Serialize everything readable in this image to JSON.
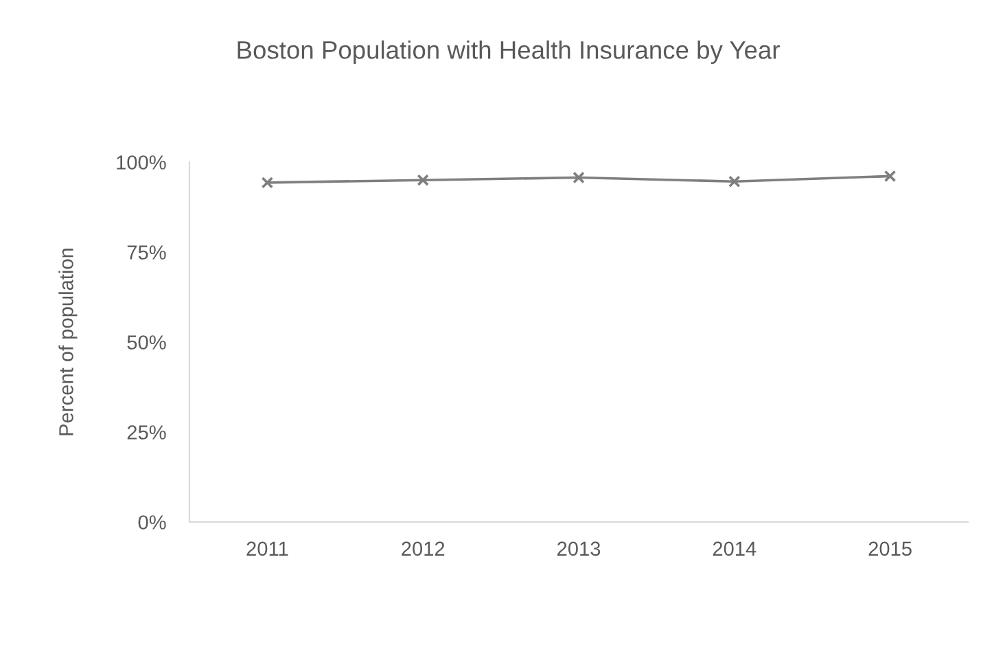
{
  "chart_data": {
    "type": "line",
    "title": "Boston Population with Health Insurance by Year",
    "ylabel": "Percent of population",
    "categories": [
      "2011",
      "2012",
      "2013",
      "2014",
      "2015"
    ],
    "series": [
      {
        "color": "#7f7f7f",
        "values": [
          94.3,
          95.0,
          95.7,
          94.6,
          96.1
        ]
      }
    ],
    "ylim": [
      0,
      100
    ],
    "yticks": [
      {
        "value": 0,
        "label": "0%"
      },
      {
        "value": 25,
        "label": "25%"
      },
      {
        "value": 50,
        "label": "50%"
      },
      {
        "value": 75,
        "label": "75%"
      },
      {
        "value": 100,
        "label": "100%"
      }
    ],
    "grid": false,
    "marker": "cross",
    "line_style": "solid"
  }
}
